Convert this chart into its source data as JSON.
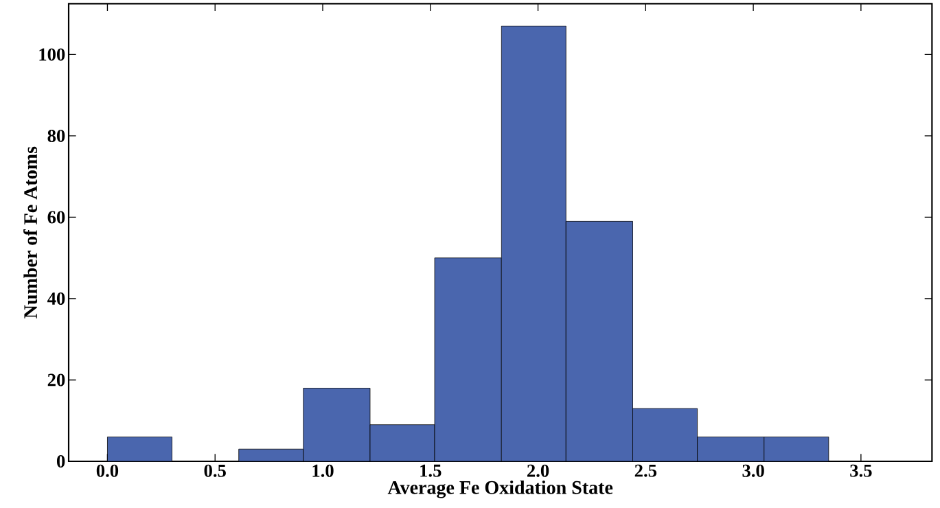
{
  "chart_data": {
    "type": "histogram",
    "xlabel": "Average Fe Oxidation State",
    "ylabel": "Number of Fe Atoms",
    "bins": [
      0,
      0.3,
      0.61,
      0.91,
      1.22,
      1.52,
      1.83,
      2.13,
      2.44,
      2.74,
      3.05,
      3.35
    ],
    "values": [
      6,
      0,
      3,
      18,
      9,
      50,
      107,
      59,
      13,
      6,
      6
    ],
    "color": "#4a66ae",
    "xlim": [
      -0.18,
      3.83
    ],
    "ylim": [
      0,
      112.5
    ],
    "xticks": [
      {
        "value": 0,
        "label": "0.0"
      },
      0.5,
      {
        "value": 1,
        "label": "1.0"
      },
      1.5,
      {
        "value": 2,
        "label": "2.0"
      },
      2.5,
      {
        "value": 3,
        "label": "3.0"
      },
      3.5
    ],
    "yticks": [
      0,
      20,
      40,
      60,
      80,
      100
    ],
    "grid": false
  }
}
